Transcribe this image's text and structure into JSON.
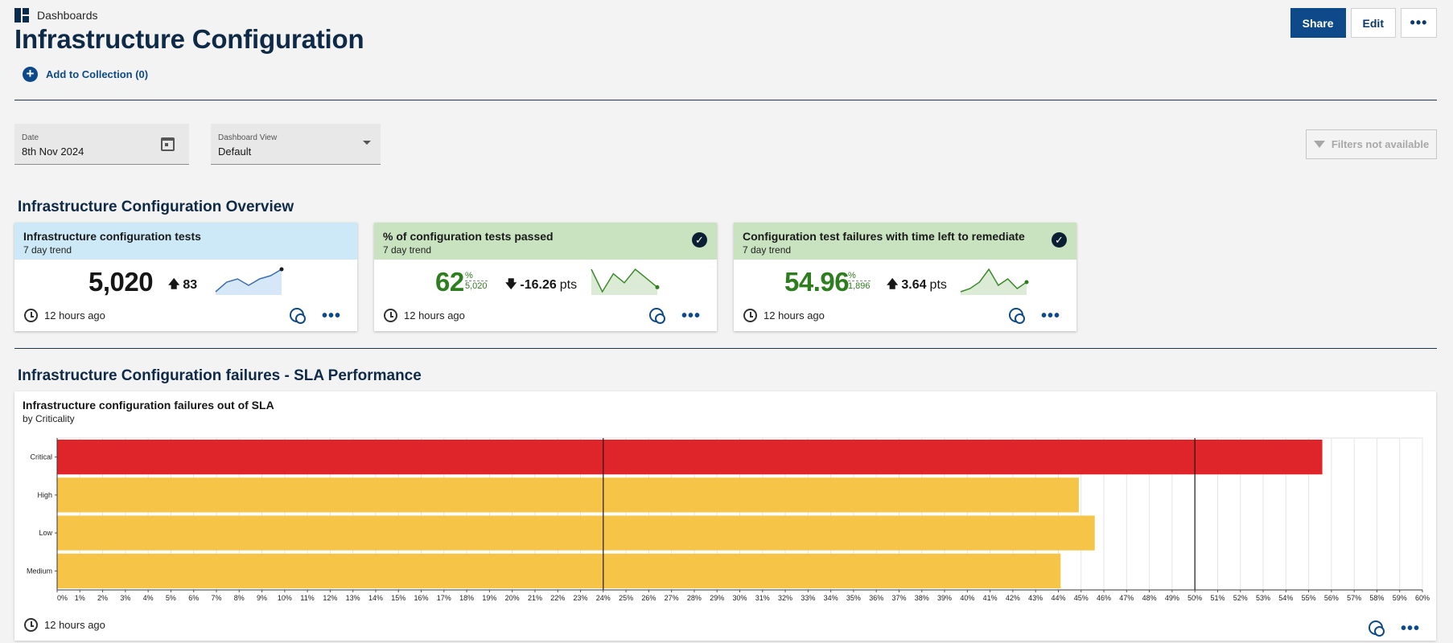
{
  "breadcrumb": {
    "label": "Dashboards",
    "icon": "dashboard-grid-icon"
  },
  "page_title": "Infrastructure Configuration",
  "header_buttons": {
    "share": "Share",
    "edit": "Edit",
    "more": "•••"
  },
  "collection": {
    "label": "Add to Collection (0)",
    "icon": "plus-circle-icon"
  },
  "filters": {
    "date": {
      "label": "Date",
      "value": "8th Nov 2024"
    },
    "dashboard_view": {
      "label": "Dashboard View",
      "value": "Default"
    },
    "filters_button": "Filters not available"
  },
  "overview": {
    "title": "Infrastructure Configuration Overview",
    "tiles": [
      {
        "title": "Infrastructure configuration tests",
        "subtitle": "7 day trend",
        "value": "5,020",
        "delta": "83",
        "delta_unit": "",
        "delta_direction": "up",
        "timestamp": "12 hours ago",
        "header_color": "#cde9f7",
        "checked": false,
        "spark": [
          2,
          5,
          6,
          4,
          6,
          7,
          9
        ]
      },
      {
        "title": "% of configuration tests passed",
        "subtitle": "7 day trend",
        "value": "62",
        "unit": "%",
        "denominator": "5,020",
        "delta": "-16.26",
        "delta_unit": "pts",
        "delta_direction": "down",
        "timestamp": "12 hours ago",
        "header_color": "#c9e2c0",
        "checked": true,
        "spark": [
          8,
          3,
          7,
          5,
          8,
          6,
          4
        ]
      },
      {
        "title": "Configuration test failures with time left to remediate",
        "subtitle": "7 day trend",
        "value": "54.96",
        "unit": "%",
        "denominator": "1,896",
        "delta": "3.64",
        "delta_unit": "pts",
        "delta_direction": "up",
        "timestamp": "12 hours ago",
        "header_color": "#c9e2c0",
        "checked": true,
        "spark": [
          2,
          3,
          5,
          9,
          4,
          6,
          3,
          5
        ]
      }
    ]
  },
  "sla_section": {
    "title": "Infrastructure Configuration failures - SLA Performance"
  },
  "chart_panel": {
    "title": "Infrastructure configuration failures out of SLA",
    "subtitle": "by Criticality",
    "timestamp": "12 hours ago"
  },
  "chart_data": {
    "type": "bar",
    "orientation": "horizontal",
    "categories": [
      "Critical",
      "High",
      "Low",
      "Medium"
    ],
    "values": [
      55.6,
      44.9,
      45.6,
      44.1
    ],
    "colors": [
      "#e0252a",
      "#f6c548",
      "#f6c548",
      "#f6c548"
    ],
    "xlim": [
      0,
      60
    ],
    "x_ticks": [
      "0%",
      "1%",
      "2%",
      "3%",
      "4%",
      "5%",
      "6%",
      "7%",
      "8%",
      "9%",
      "10%",
      "11%",
      "12%",
      "13%",
      "14%",
      "15%",
      "16%",
      "17%",
      "18%",
      "19%",
      "20%",
      "21%",
      "22%",
      "23%",
      "24%",
      "25%",
      "26%",
      "27%",
      "28%",
      "29%",
      "30%",
      "31%",
      "32%",
      "33%",
      "34%",
      "35%",
      "36%",
      "37%",
      "38%",
      "39%",
      "40%",
      "41%",
      "42%",
      "43%",
      "44%",
      "45%",
      "46%",
      "47%",
      "48%",
      "49%",
      "50%",
      "51%",
      "52%",
      "53%",
      "54%",
      "55%",
      "56%",
      "57%",
      "58%",
      "59%",
      "60%"
    ],
    "reference_lines": [
      24,
      50
    ],
    "grid": true
  }
}
